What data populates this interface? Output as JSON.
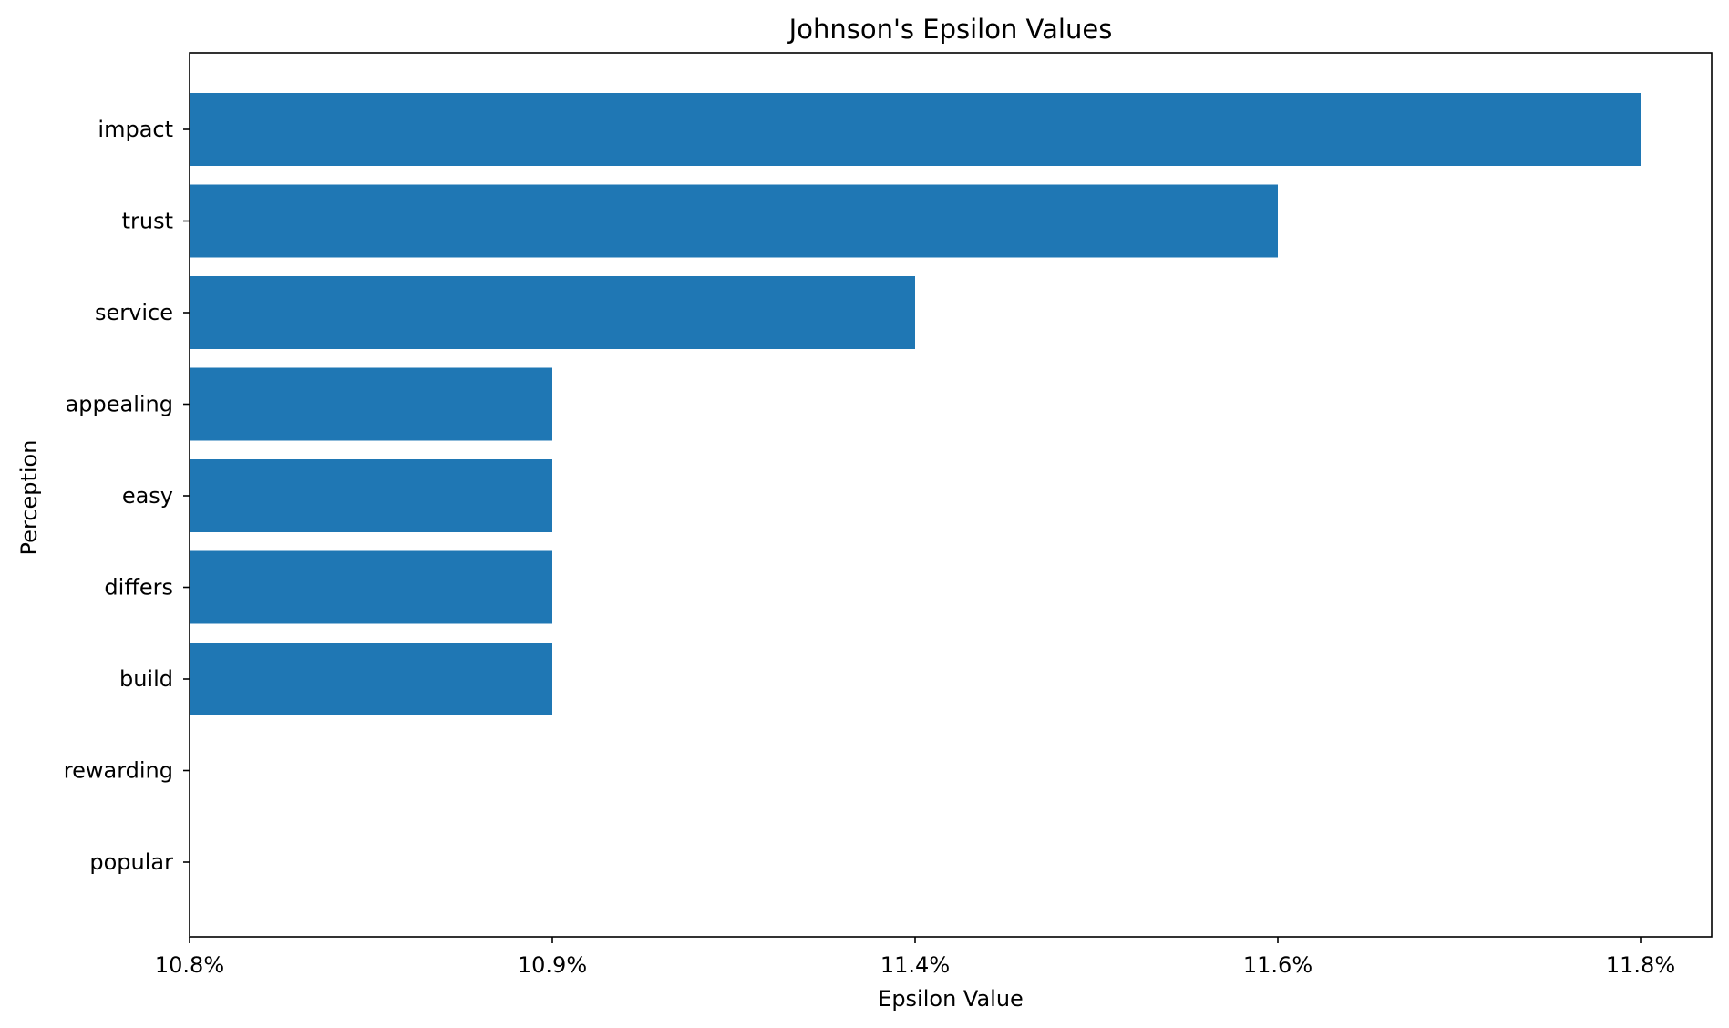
{
  "chart_data": {
    "type": "bar",
    "orientation": "horizontal",
    "title": "Johnson's Epsilon Values",
    "xlabel": "Epsilon Value",
    "ylabel": "Perception",
    "categories": [
      "impact",
      "trust",
      "service",
      "appealing",
      "easy",
      "differs",
      "build",
      "rewarding",
      "popular"
    ],
    "values": [
      11.8,
      11.6,
      11.4,
      10.9,
      10.9,
      10.9,
      10.9,
      10.8,
      10.8
    ],
    "x_ticks": [
      {
        "label": "10.8%"
      },
      {
        "label": "10.9%"
      },
      {
        "label": "11.4%"
      },
      {
        "label": "11.6%"
      },
      {
        "label": "11.8%"
      }
    ],
    "bar_color": "#1f77b4",
    "grid": false,
    "legend": "none"
  }
}
